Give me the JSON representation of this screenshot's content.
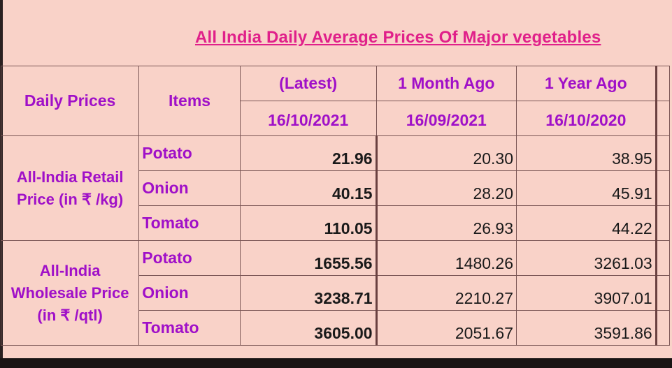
{
  "title": "All India Daily Average Prices Of Major vegetables",
  "headers": {
    "daily_prices": "Daily Prices",
    "items": "Items",
    "latest_label": "(Latest)",
    "latest_date": "16/10/2021",
    "month_ago_label": "1 Month Ago",
    "month_ago_date": "16/09/2021",
    "year_ago_label": "1 Year Ago",
    "year_ago_date": "16/10/2020"
  },
  "retail": {
    "group_label": "All-India Retail Price (in ₹ /kg)",
    "rows": [
      {
        "item": "Potato",
        "latest": "21.96",
        "month_ago": "20.30",
        "year_ago": "38.95"
      },
      {
        "item": "Onion",
        "latest": "40.15",
        "month_ago": "28.20",
        "year_ago": "45.91"
      },
      {
        "item": "Tomato",
        "latest": "110.05",
        "month_ago": "26.93",
        "year_ago": "44.22"
      }
    ]
  },
  "wholesale": {
    "group_label": "All-India Wholesale Price (in ₹ /qtl)",
    "rows": [
      {
        "item": "Potato",
        "latest": "1655.56",
        "month_ago": "1480.26",
        "year_ago": "3261.03"
      },
      {
        "item": "Onion",
        "latest": "3238.71",
        "month_ago": "2210.27",
        "year_ago": "3907.01"
      },
      {
        "item": "Tomato",
        "latest": "3605.00",
        "month_ago": "2051.67",
        "year_ago": "3591.86"
      }
    ]
  }
}
